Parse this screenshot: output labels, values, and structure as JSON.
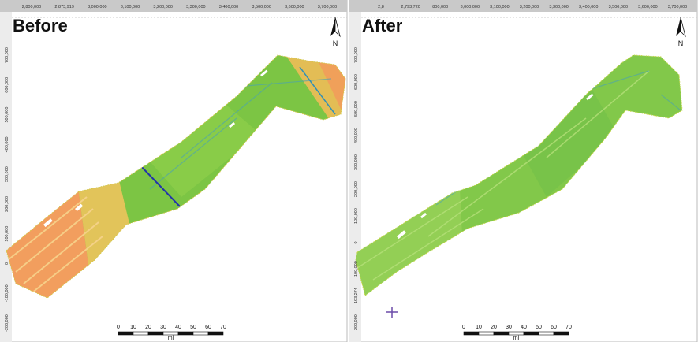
{
  "panels": [
    {
      "title": "Before",
      "top_axis": [
        "2,800,000",
        "2,873,919",
        "3,000,000",
        "3,100,000",
        "3,200,000",
        "3,300,000",
        "3,400,000",
        "3,500,000",
        "3,600,000",
        "3,700,000"
      ],
      "left_axis": [
        "700,000",
        "600,000",
        "500,000",
        "400,000",
        "300,000",
        "200,000",
        "100,000",
        "0",
        "-100,000",
        "-200,000"
      ],
      "north": "N",
      "scale": {
        "ticks": [
          0,
          10,
          20,
          30,
          40,
          50,
          60,
          70
        ],
        "unit": "mi"
      }
    },
    {
      "title": "After",
      "top_axis": [
        "2,8",
        "2,793,720",
        "800,000",
        "3,000,000",
        "3,100,000",
        "3,200,000",
        "3,300,000",
        "3,400,000",
        "3,500,000",
        "3,600,000",
        "3,700,000"
      ],
      "left_axis": [
        "700,000",
        "600,000",
        "500,000",
        "400,000",
        "300,000",
        "200,000",
        "100,000",
        "0",
        "-100,000",
        "-193,274",
        "-200,000"
      ],
      "north": "N",
      "scale": {
        "ticks": [
          0,
          10,
          20,
          30,
          40,
          50,
          60,
          70
        ],
        "unit": "mi"
      }
    }
  ]
}
